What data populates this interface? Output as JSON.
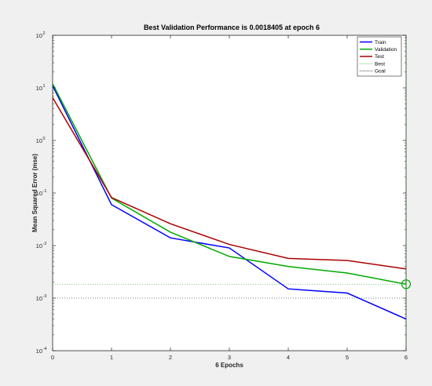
{
  "chart_data": {
    "type": "line",
    "title": "Best Validation Performance is 0.0018405 at epoch 6",
    "xlabel": "6 Epochs",
    "ylabel": "Mean Squared Error  (mse)",
    "xlim": [
      0,
      6
    ],
    "ylim": [
      0.0001,
      100
    ],
    "yscale": "log",
    "x_ticks": [
      "0",
      "1",
      "2",
      "3",
      "4",
      "5",
      "6"
    ],
    "y_ticks": [
      {
        "base": "10",
        "exp": "2"
      },
      {
        "base": "10",
        "exp": "1"
      },
      {
        "base": "10",
        "exp": "0"
      },
      {
        "base": "10",
        "exp": "-1"
      },
      {
        "base": "10",
        "exp": "-2"
      },
      {
        "base": "10",
        "exp": "-3"
      },
      {
        "base": "10",
        "exp": "-4"
      }
    ],
    "x": [
      0,
      1,
      2,
      3,
      4,
      5,
      6
    ],
    "series": [
      {
        "name": "Train",
        "color": "#0000ff",
        "values": [
          11,
          0.06,
          0.014,
          0.009,
          0.0015,
          0.00125,
          0.0004
        ]
      },
      {
        "name": "Validation",
        "color": "#00aa00",
        "values": [
          12,
          0.08,
          0.018,
          0.0062,
          0.004,
          0.003,
          0.0018405
        ]
      },
      {
        "name": "Test",
        "color": "#aa0000",
        "values": [
          6.5,
          0.082,
          0.026,
          0.0105,
          0.0057,
          0.0052,
          0.0036
        ]
      }
    ],
    "best": {
      "name": "Best",
      "epoch": 6,
      "value": 0.0018405,
      "color": "#00aa00"
    },
    "goal": {
      "name": "Goal",
      "value": 0.001
    },
    "legend_position": "top-right",
    "grid": false
  }
}
